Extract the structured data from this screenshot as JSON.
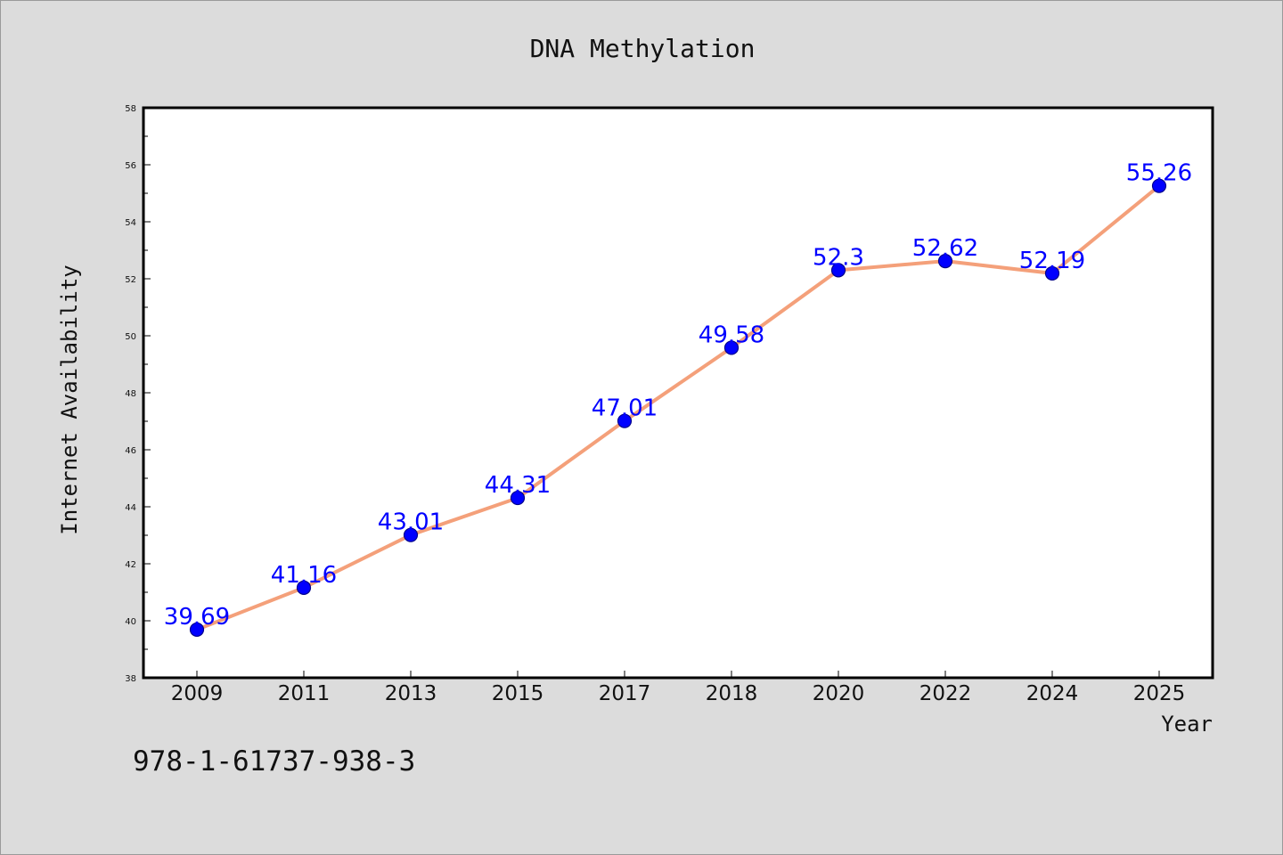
{
  "chart_data": {
    "type": "line",
    "title": "DNA Methylation",
    "xlabel": "Year",
    "ylabel": "Internet Availability",
    "categories": [
      "2009",
      "2011",
      "2013",
      "2015",
      "2017",
      "2018",
      "2020",
      "2022",
      "2024",
      "2025"
    ],
    "series": [
      {
        "values": [
          39.69,
          41.16,
          43.01,
          44.31,
          47.01,
          49.58,
          52.3,
          52.62,
          52.19,
          55.26
        ],
        "labels": [
          "39.69",
          "41.16",
          "43.01",
          "44.31",
          "47.01",
          "49.58",
          "52.3",
          "52.62",
          "52.19",
          "55.26"
        ]
      }
    ],
    "ylim": [
      38,
      58
    ],
    "yticks": [
      38,
      40,
      42,
      44,
      46,
      48,
      50,
      52,
      54,
      56,
      58
    ],
    "grid": false,
    "legend": "none",
    "colors": {
      "line": "#f4a07a",
      "marker": "#0000ff",
      "marker_edge": "#00008b",
      "data_label": "#0000ff",
      "plot_background": "#ffffff",
      "figure_background": "#dcdcdc"
    }
  },
  "footer": {
    "isbn": "978-1-61737-938-3"
  }
}
